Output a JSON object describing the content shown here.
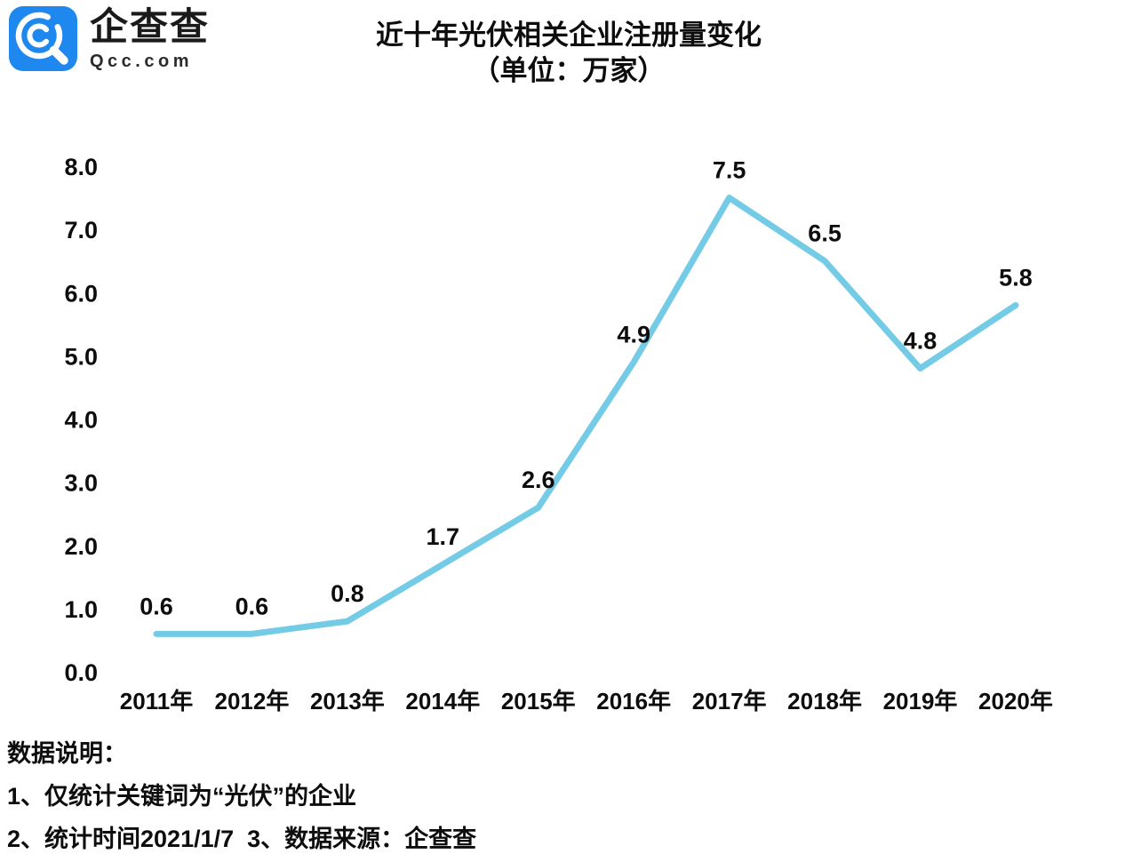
{
  "brand": {
    "logo_name": "企查查",
    "logo_domain": "Qcc.com",
    "logo_color": "#1E88EE"
  },
  "chart_data": {
    "type": "line",
    "title": "近十年光伏相关企业注册量变化",
    "subtitle": "（单位：万家）",
    "categories": [
      "2011年",
      "2012年",
      "2013年",
      "2014年",
      "2015年",
      "2016年",
      "2017年",
      "2018年",
      "2019年",
      "2020年"
    ],
    "values": [
      0.6,
      0.6,
      0.8,
      1.7,
      2.6,
      4.9,
      7.5,
      6.5,
      4.8,
      5.8
    ],
    "y_ticks": [
      "8.0",
      "7.0",
      "6.0",
      "5.0",
      "4.0",
      "3.0",
      "2.0",
      "1.0",
      "0.0"
    ],
    "ylim": [
      0,
      8
    ],
    "xlabel": "",
    "ylabel": "",
    "grid": false,
    "legend_position": "none",
    "line_color": "#73CBE6",
    "label_color": "#0d0d0d"
  },
  "notes": {
    "heading": "数据说明：",
    "line1": "1、仅统计关键词为“光伏”的企业",
    "line2": "2、统计时间2021/1/7  3、数据来源：企查查"
  }
}
